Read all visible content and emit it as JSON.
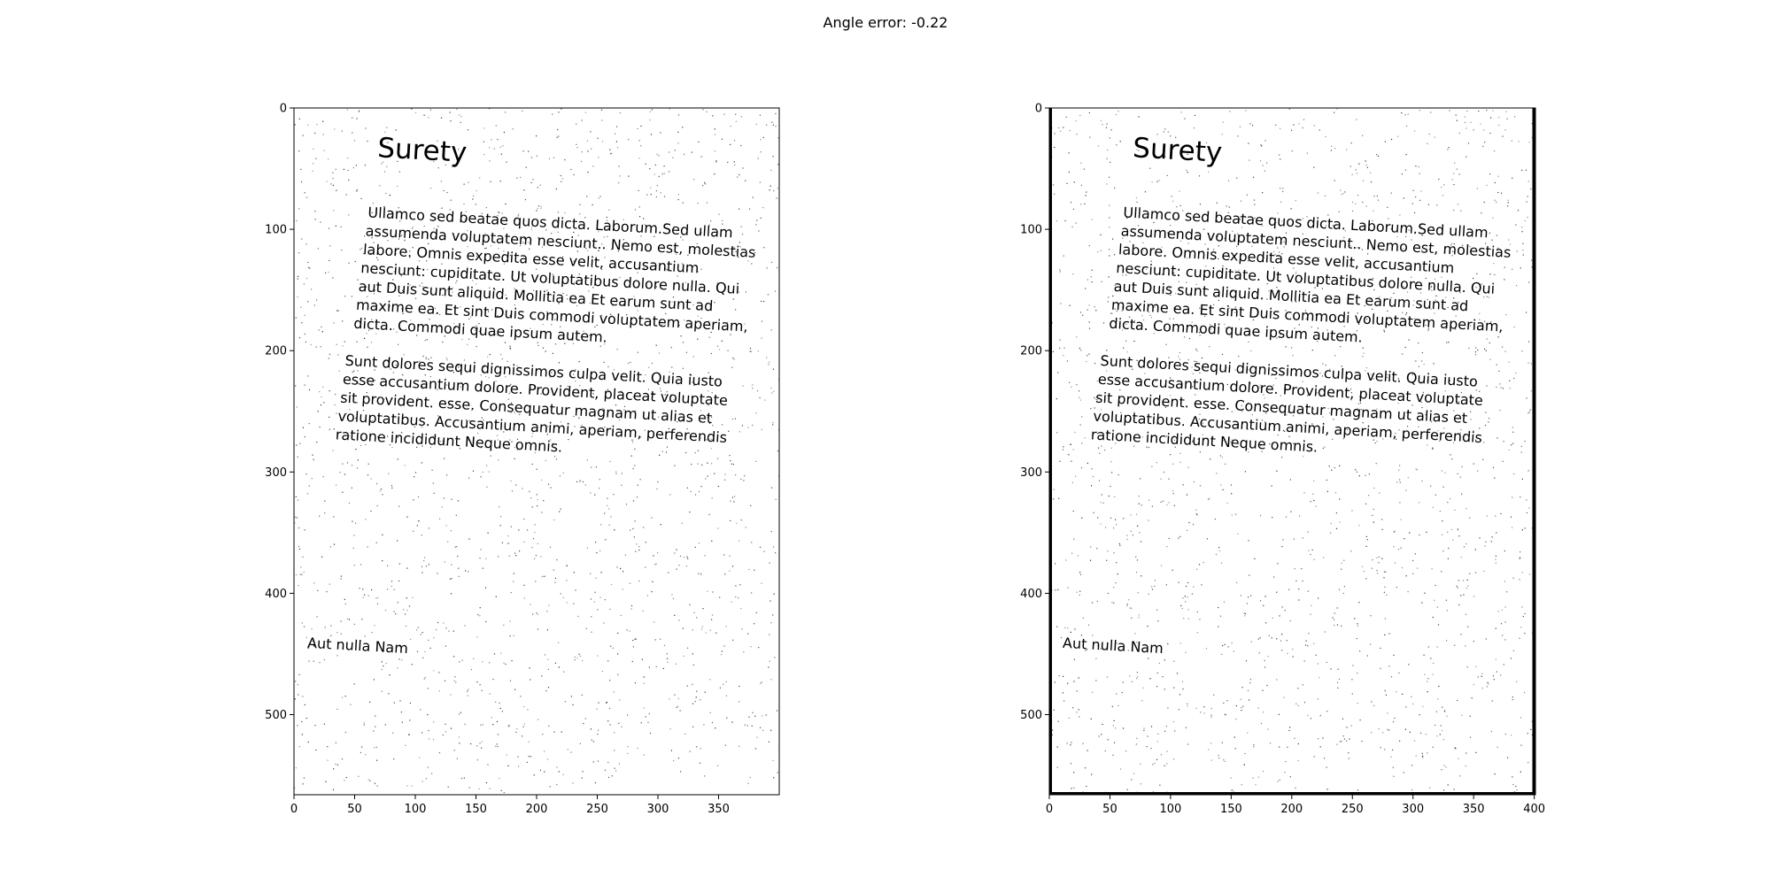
{
  "figure": {
    "suptitle": "Angle error: -0.22"
  },
  "document": {
    "title": "Surety",
    "paragraph1": [
      "Ullamco sed beatae quos dicta. Laborum.Sed ullam",
      "assumenda voluptatem nesciunt.. Nemo est, molestias",
      "labore. Omnis expedita esse velit, accusantium",
      "nesciunt: cupiditate. Ut voluptatibus dolore nulla. Qui",
      "aut Duis sunt aliquid. Mollitia ea Et earum sunt ad",
      "maxime ea. Et sint Duis commodi voluptatem aperiam,",
      "dicta. Commodi quae ipsum autem."
    ],
    "paragraph2": [
      "Sunt dolores sequi dignissimos culpa velit. Quia iusto",
      "esse accusantium dolore. Provident, placeat voluptate",
      "sit provident. esse. Consequatur magnam ut alias et",
      "voluptatibus. Accusantium animi, aperiam, perferendis",
      "ratione incididunt Neque omnis."
    ],
    "footer": "Aut nulla Nam"
  },
  "panels": [
    {
      "name": "left-panel",
      "xlim": [
        0,
        400
      ],
      "ylim": [
        566,
        0
      ],
      "xticks": [
        0,
        50,
        100,
        150,
        200,
        250,
        300,
        350
      ],
      "yticks": [
        0,
        100,
        200,
        300,
        400,
        500
      ],
      "border_color": "#000000"
    },
    {
      "name": "right-panel",
      "xlim": [
        0,
        401
      ],
      "ylim": [
        566,
        0
      ],
      "xticks": [
        0,
        50,
        100,
        150,
        200,
        250,
        300,
        350,
        400
      ],
      "yticks": [
        0,
        100,
        200,
        300,
        400,
        500
      ],
      "border_color": "#000000"
    }
  ],
  "colors": {
    "ink": "#000000",
    "background": "#ffffff",
    "speckle": "#222222"
  }
}
